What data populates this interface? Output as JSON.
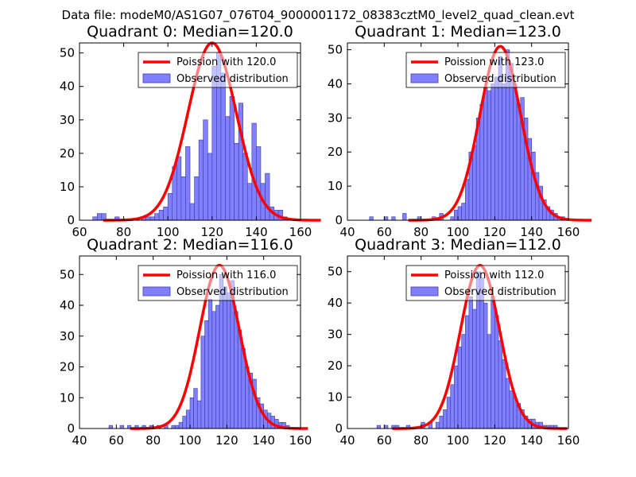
{
  "figure_title": "Data file: modeM0/AS1G07_076T04_9000001172_08383cztM0_level2_quad_clean.evt",
  "colors": {
    "curve": "#ff0000",
    "bars": "#8080ff",
    "bar_edge": "#3a3aa8",
    "axes": "#000000"
  },
  "chart_data": [
    {
      "type": "bar",
      "title": "Quadrant 0: Median=120.0",
      "xlim": [
        60,
        160
      ],
      "ylim": [
        0,
        53
      ],
      "xticks": [
        60,
        80,
        100,
        120,
        140,
        160
      ],
      "yticks": [
        0,
        10,
        20,
        30,
        40,
        50
      ],
      "legend": [
        "Poission with 120.0",
        "Observed distribution"
      ],
      "legend_loc": "top-right",
      "poisson_mean": 120,
      "poisson_peak": 53,
      "bins": [
        [
          66,
          1
        ],
        [
          68,
          2
        ],
        [
          70,
          2
        ],
        [
          76,
          1
        ],
        [
          88,
          1
        ],
        [
          90,
          1
        ],
        [
          92,
          1
        ],
        [
          94,
          2
        ],
        [
          96,
          3
        ],
        [
          98,
          4
        ],
        [
          100,
          8
        ],
        [
          102,
          16
        ],
        [
          104,
          19
        ],
        [
          106,
          13
        ],
        [
          108,
          22
        ],
        [
          110,
          5
        ],
        [
          112,
          13
        ],
        [
          114,
          24
        ],
        [
          116,
          30
        ],
        [
          118,
          20
        ],
        [
          120,
          46
        ],
        [
          122,
          50
        ],
        [
          124,
          44
        ],
        [
          126,
          31
        ],
        [
          128,
          37
        ],
        [
          130,
          23
        ],
        [
          132,
          35
        ],
        [
          134,
          20
        ],
        [
          136,
          11
        ],
        [
          138,
          29
        ],
        [
          140,
          22
        ],
        [
          142,
          11
        ],
        [
          144,
          14
        ],
        [
          146,
          4
        ],
        [
          148,
          3
        ],
        [
          150,
          3
        ],
        [
          152,
          1
        ]
      ]
    },
    {
      "type": "bar",
      "title": "Quadrant 1: Median=123.0",
      "xlim": [
        40,
        160
      ],
      "ylim": [
        0,
        52
      ],
      "xticks": [
        40,
        60,
        80,
        100,
        120,
        140,
        160
      ],
      "yticks": [
        0,
        10,
        20,
        30,
        40,
        50
      ],
      "legend": [
        "Poission with 123.0",
        "Observed distribution"
      ],
      "legend_loc": "top-right",
      "poisson_mean": 123,
      "poisson_peak": 51,
      "bins": [
        [
          52,
          1
        ],
        [
          60,
          1
        ],
        [
          64,
          1
        ],
        [
          70,
          2
        ],
        [
          78,
          1
        ],
        [
          86,
          1
        ],
        [
          90,
          2
        ],
        [
          96,
          1
        ],
        [
          98,
          3
        ],
        [
          100,
          4
        ],
        [
          102,
          5
        ],
        [
          104,
          12
        ],
        [
          106,
          20
        ],
        [
          108,
          22
        ],
        [
          110,
          30
        ],
        [
          112,
          34
        ],
        [
          114,
          39
        ],
        [
          116,
          38
        ],
        [
          118,
          40
        ],
        [
          120,
          42
        ],
        [
          122,
          48
        ],
        [
          124,
          40
        ],
        [
          126,
          50
        ],
        [
          128,
          46
        ],
        [
          130,
          40
        ],
        [
          132,
          34
        ],
        [
          134,
          36
        ],
        [
          136,
          30
        ],
        [
          138,
          24
        ],
        [
          140,
          20
        ],
        [
          142,
          14
        ],
        [
          144,
          10
        ],
        [
          146,
          6
        ],
        [
          148,
          4
        ],
        [
          150,
          3
        ],
        [
          152,
          2
        ],
        [
          154,
          1
        ],
        [
          156,
          1
        ]
      ]
    },
    {
      "type": "bar",
      "title": "Quadrant 2: Median=116.0",
      "xlim": [
        40,
        160
      ],
      "ylim": [
        0,
        56
      ],
      "xticks": [
        40,
        60,
        80,
        100,
        120,
        140,
        160
      ],
      "yticks": [
        0,
        10,
        20,
        30,
        40,
        50
      ],
      "legend": [
        "Poission with 116.0",
        "Observed distribution"
      ],
      "legend_loc": "top-right",
      "poisson_mean": 116,
      "poisson_peak": 53,
      "bins": [
        [
          56,
          1
        ],
        [
          62,
          1
        ],
        [
          66,
          1
        ],
        [
          70,
          1
        ],
        [
          74,
          1
        ],
        [
          78,
          1
        ],
        [
          82,
          1
        ],
        [
          86,
          1
        ],
        [
          90,
          1
        ],
        [
          92,
          1
        ],
        [
          94,
          2
        ],
        [
          96,
          4
        ],
        [
          98,
          6
        ],
        [
          100,
          10
        ],
        [
          102,
          13
        ],
        [
          104,
          9
        ],
        [
          106,
          30
        ],
        [
          108,
          35
        ],
        [
          110,
          42
        ],
        [
          112,
          38
        ],
        [
          114,
          40
        ],
        [
          116,
          50
        ],
        [
          118,
          46
        ],
        [
          120,
          44
        ],
        [
          122,
          48
        ],
        [
          124,
          38
        ],
        [
          126,
          32
        ],
        [
          128,
          26
        ],
        [
          130,
          20
        ],
        [
          132,
          18
        ],
        [
          134,
          16
        ],
        [
          136,
          10
        ],
        [
          138,
          8
        ],
        [
          140,
          6
        ],
        [
          142,
          5
        ],
        [
          144,
          4
        ],
        [
          146,
          3
        ],
        [
          148,
          2
        ],
        [
          150,
          2
        ],
        [
          152,
          1
        ]
      ]
    },
    {
      "type": "bar",
      "title": "Quadrant 3: Median=112.0",
      "xlim": [
        40,
        160
      ],
      "ylim": [
        0,
        55
      ],
      "xticks": [
        40,
        60,
        80,
        100,
        120,
        140,
        160
      ],
      "yticks": [
        0,
        10,
        20,
        30,
        40,
        50
      ],
      "legend": [
        "Poission with 112.0",
        "Observed distribution"
      ],
      "legend_loc": "top-right",
      "poisson_mean": 112,
      "poisson_peak": 52,
      "bins": [
        [
          56,
          1
        ],
        [
          60,
          1
        ],
        [
          64,
          1
        ],
        [
          66,
          1
        ],
        [
          72,
          1
        ],
        [
          80,
          2
        ],
        [
          84,
          2
        ],
        [
          88,
          2
        ],
        [
          90,
          4
        ],
        [
          92,
          6
        ],
        [
          94,
          10
        ],
        [
          96,
          14
        ],
        [
          98,
          20
        ],
        [
          100,
          26
        ],
        [
          102,
          30
        ],
        [
          104,
          36
        ],
        [
          106,
          42
        ],
        [
          108,
          38
        ],
        [
          110,
          50
        ],
        [
          112,
          48
        ],
        [
          114,
          40
        ],
        [
          116,
          30
        ],
        [
          118,
          42
        ],
        [
          120,
          36
        ],
        [
          122,
          28
        ],
        [
          124,
          22
        ],
        [
          126,
          16
        ],
        [
          128,
          12
        ],
        [
          130,
          10
        ],
        [
          132,
          8
        ],
        [
          134,
          6
        ],
        [
          136,
          4
        ],
        [
          138,
          3
        ],
        [
          140,
          3
        ],
        [
          142,
          2
        ],
        [
          144,
          2
        ],
        [
          146,
          1
        ],
        [
          148,
          1
        ],
        [
          150,
          1
        ],
        [
          152,
          1
        ]
      ]
    }
  ]
}
